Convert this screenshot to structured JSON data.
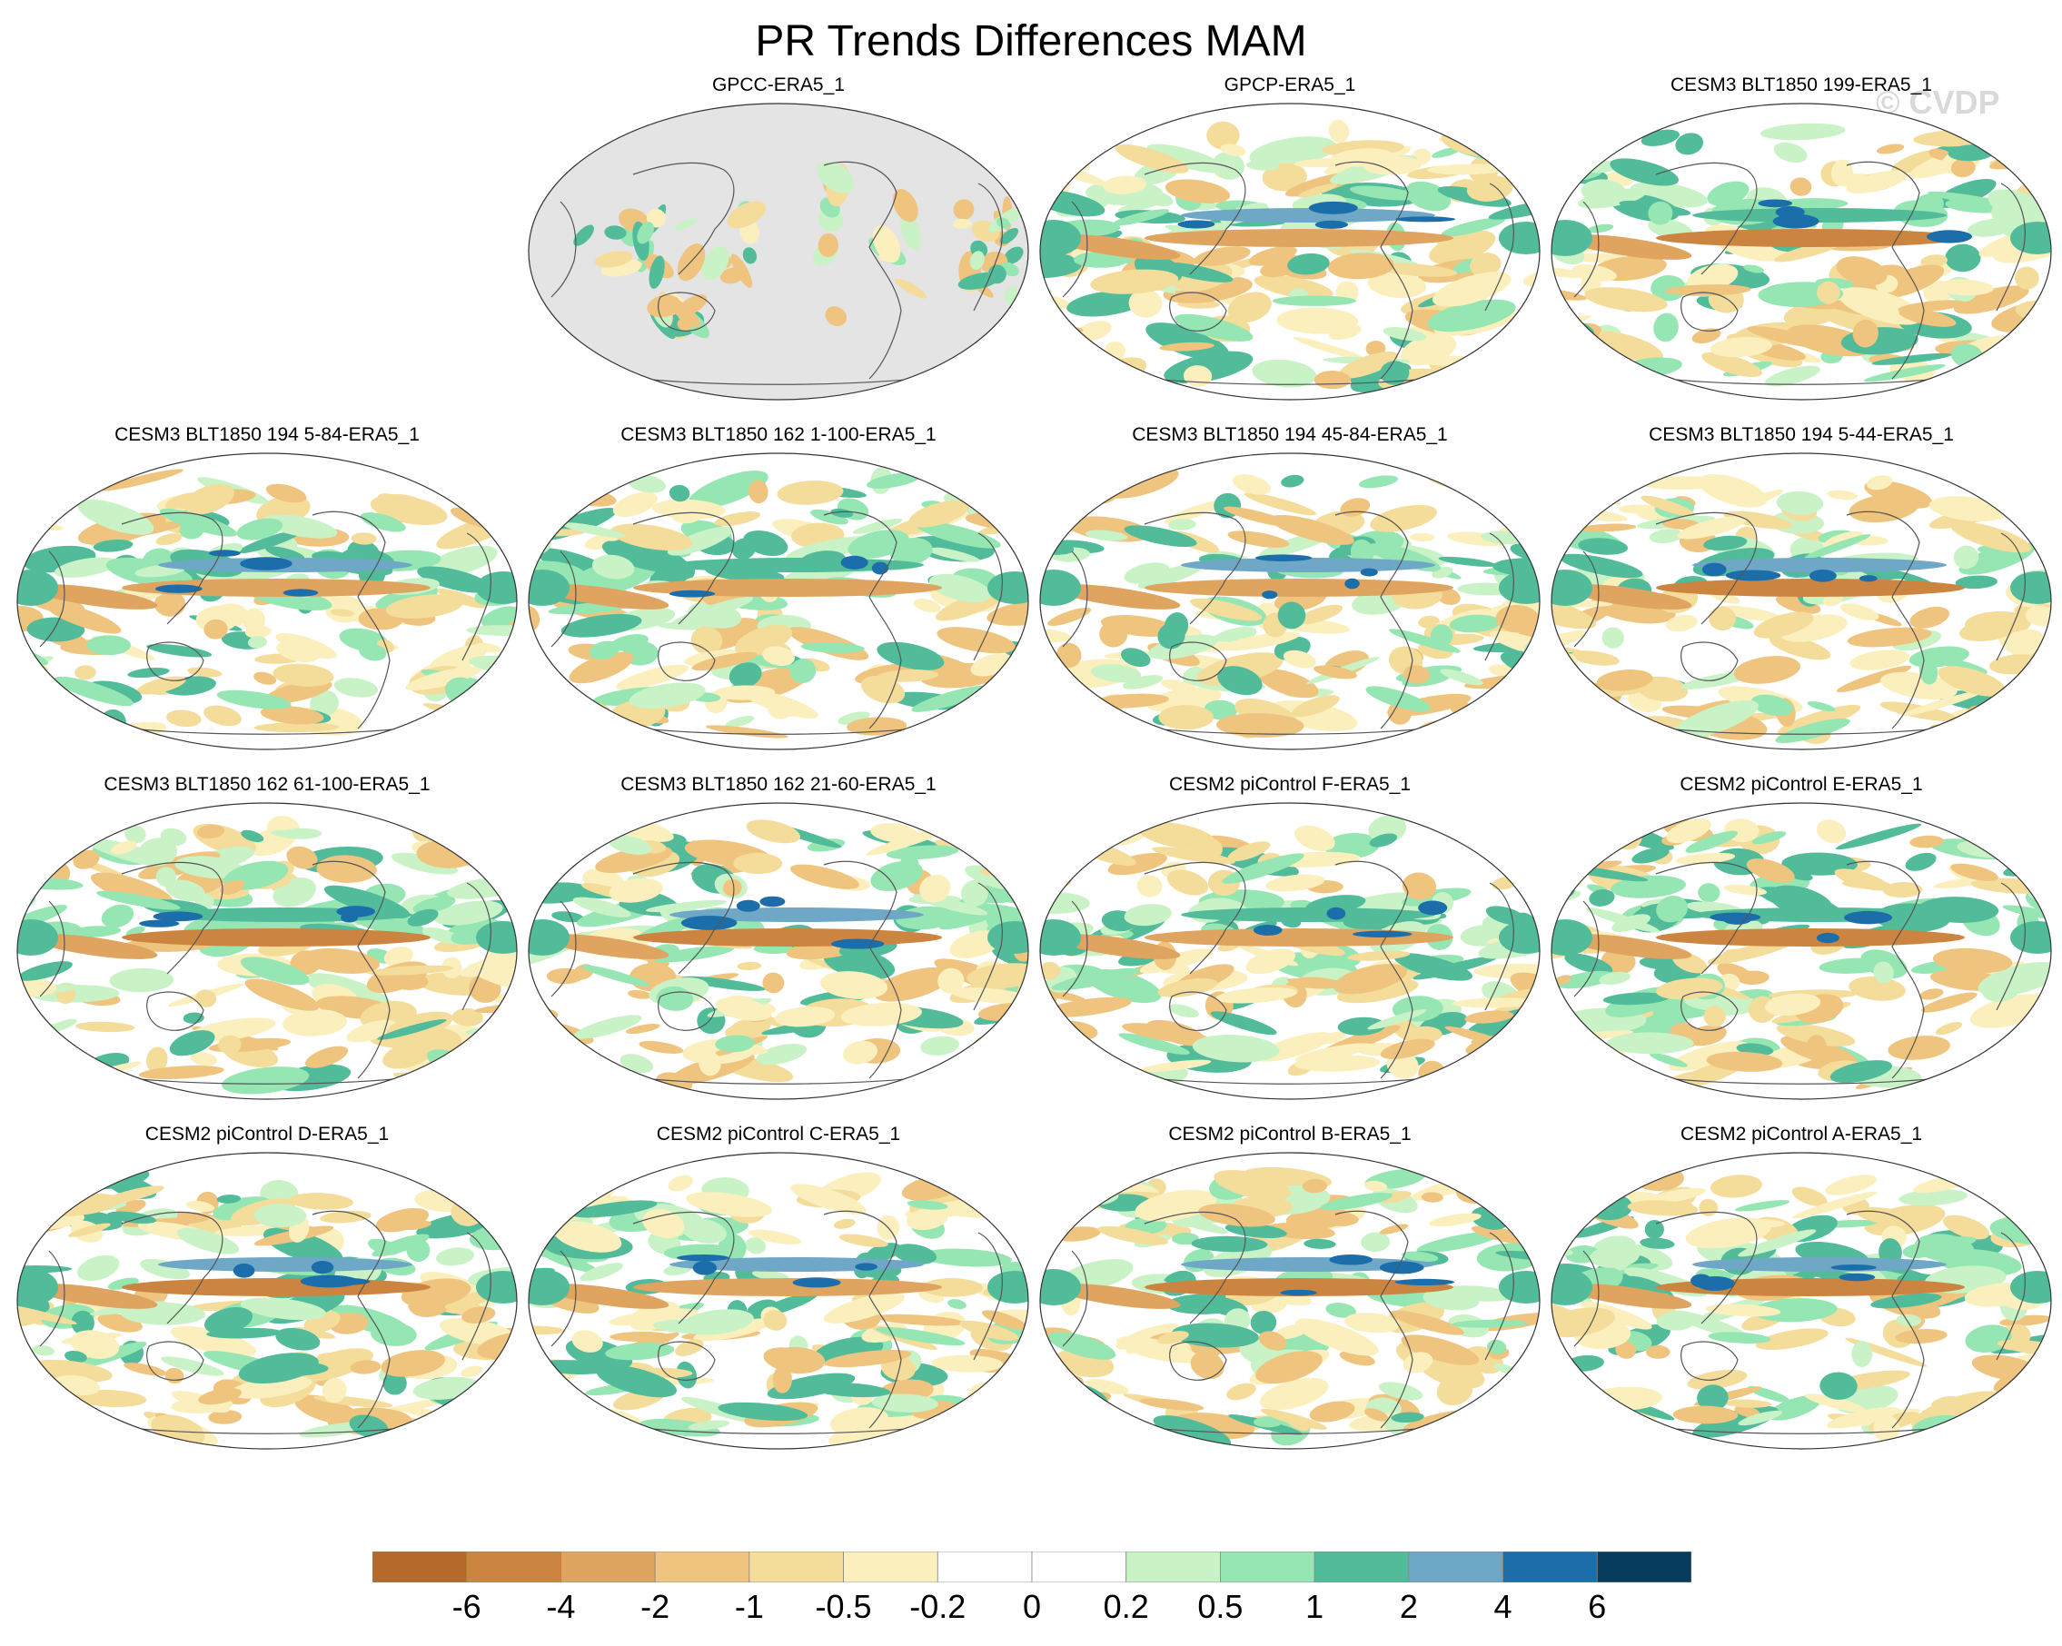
{
  "chart_data": {
    "type": "heatmap",
    "title": "PR Trends Differences MAM",
    "watermark": "© CVDP",
    "projection": "global map panels",
    "panels": [
      {
        "label": "GPCC-ERA5_1",
        "land_only": true
      },
      {
        "label": "GPCP-ERA5_1"
      },
      {
        "label": "CESM3 BLT1850 199-ERA5_1"
      },
      {
        "label": "CESM3 BLT1850 194 5-84-ERA5_1"
      },
      {
        "label": "CESM3 BLT1850 162 1-100-ERA5_1"
      },
      {
        "label": "CESM3 BLT1850 194 45-84-ERA5_1"
      },
      {
        "label": "CESM3 BLT1850 194 5-44-ERA5_1"
      },
      {
        "label": "CESM3 BLT1850 162 61-100-ERA5_1"
      },
      {
        "label": "CESM3 BLT1850 162 21-60-ERA5_1"
      },
      {
        "label": "CESM2 piControl F-ERA5_1"
      },
      {
        "label": "CESM2 piControl E-ERA5_1"
      },
      {
        "label": "CESM2 piControl D-ERA5_1"
      },
      {
        "label": "CESM2 piControl C-ERA5_1"
      },
      {
        "label": "CESM2 piControl B-ERA5_1"
      },
      {
        "label": "CESM2 piControl A-ERA5_1"
      }
    ],
    "colorbar": {
      "levels": [
        "-6",
        "-4",
        "-2",
        "-1",
        "-0.5",
        "-0.2",
        "0",
        "0.2",
        "0.5",
        "1",
        "2",
        "4",
        "6"
      ],
      "colors": [
        "#b5692b",
        "#cb8540",
        "#dea460",
        "#efc47e",
        "#f4dc9a",
        "#fbf0bd",
        "#ffffff",
        "#ffffff",
        "#c9f3c7",
        "#95e6b2",
        "#52bc9a",
        "#6fa8c7",
        "#1c6eaa",
        "#073c5e"
      ]
    }
  },
  "colors": {
    "land_mask": "#e4e4e4",
    "coast": "#555555"
  }
}
